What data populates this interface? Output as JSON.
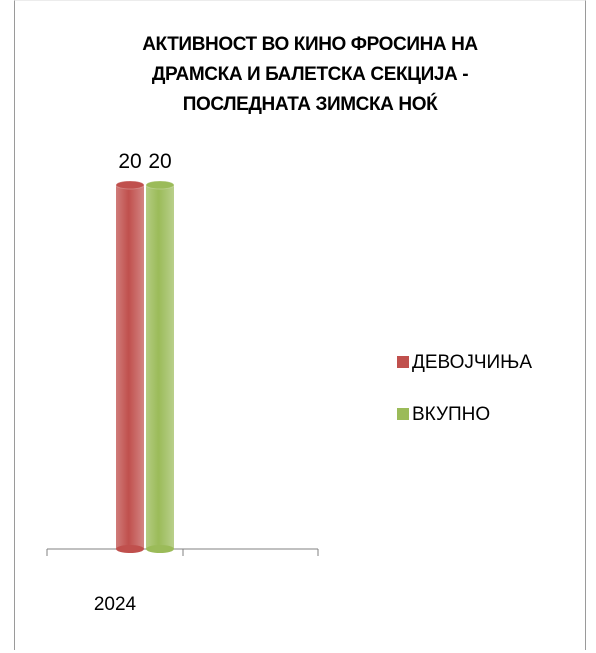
{
  "chart_data": {
    "type": "bar",
    "title_lines": [
      "АКТИВНОСТ ВО КИНО ФРОСИНА НА",
      "ДРАМСКА И БАЛЕТСКА СЕКЦИЈА -",
      "ПОСЛЕДНАТА ЗИМСКА НОЌ"
    ],
    "categories": [
      "2024"
    ],
    "series": [
      {
        "name": "ДЕВОЈЧИЊА",
        "values": [
          20
        ],
        "color": "#c0504d"
      },
      {
        "name": "ВКУПНО",
        "values": [
          20
        ],
        "color": "#9bbb59"
      }
    ],
    "data_labels": [
      "20",
      "20"
    ],
    "ylim": [
      0,
      20
    ],
    "legend_position": "right",
    "grid": false,
    "bar_style": "3d-cylinder"
  }
}
